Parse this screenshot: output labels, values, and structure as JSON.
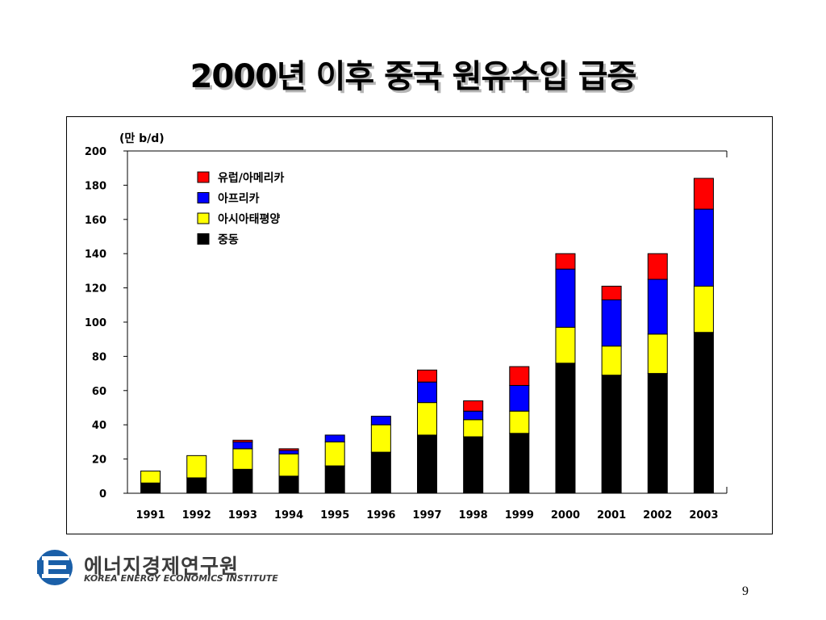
{
  "slide": {
    "title": "2000년 이후 중국 원유수입 급증",
    "page_number": "9"
  },
  "logo": {
    "name_ko": "에너지경제연구원",
    "name_en": "KOREA ENERGY ECONOMICS INSTITUTE",
    "colors": {
      "blue": "#1a5fa8",
      "dark": "#3c3c3c"
    }
  },
  "chart_data": {
    "type": "bar",
    "stacked": true,
    "unit_label": "(만 b/d)",
    "categories": [
      "1991",
      "1992",
      "1993",
      "1994",
      "1995",
      "1996",
      "1997",
      "1998",
      "1999",
      "2000",
      "2001",
      "2002",
      "2003"
    ],
    "ylim": [
      0,
      200
    ],
    "yticks": [
      0,
      20,
      40,
      60,
      80,
      100,
      120,
      140,
      160,
      180,
      200
    ],
    "series": [
      {
        "name": "중동",
        "color": "#000000",
        "values": [
          6,
          9,
          14,
          10,
          16,
          24,
          34,
          33,
          35,
          76,
          69,
          70,
          94
        ]
      },
      {
        "name": "아시아태평양",
        "color": "#ffff00",
        "values": [
          7,
          13,
          12,
          13,
          14,
          16,
          19,
          10,
          13,
          21,
          17,
          23,
          27
        ]
      },
      {
        "name": "아프리카",
        "color": "#0000ff",
        "values": [
          0,
          0,
          4,
          2,
          4,
          5,
          12,
          5,
          15,
          34,
          27,
          32,
          45
        ]
      },
      {
        "name": "유럽/아메리카",
        "color": "#ff0000",
        "values": [
          0,
          0,
          1,
          1,
          0,
          0,
          7,
          6,
          11,
          9,
          8,
          15,
          18
        ]
      }
    ],
    "legend_order": [
      "유럽/아메리카",
      "아프리카",
      "아시아태평양",
      "중동"
    ],
    "legend_position": "top-left",
    "grid": false
  }
}
